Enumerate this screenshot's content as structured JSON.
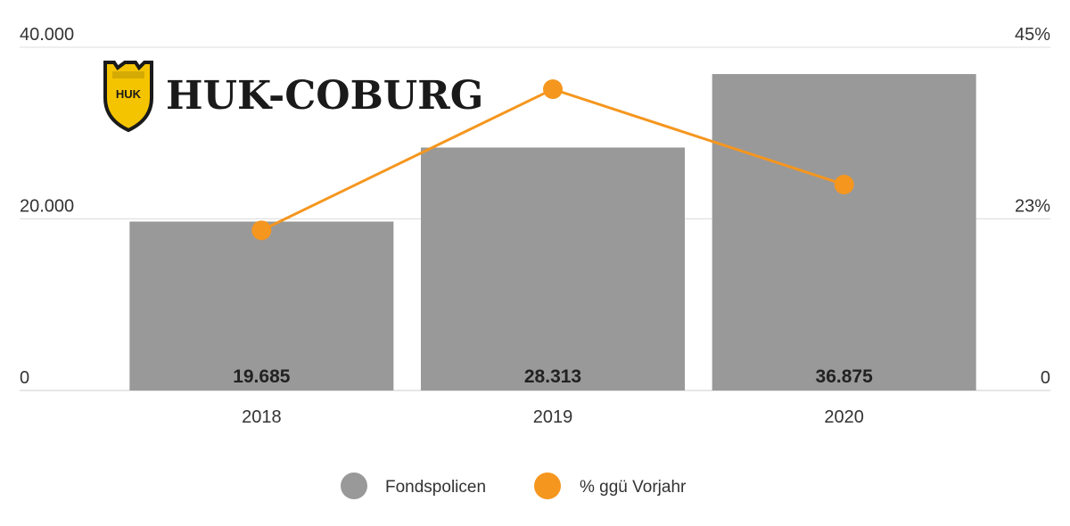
{
  "brand": {
    "name": "HUK-COBURG",
    "shield_text": "HUK"
  },
  "chart_data": {
    "type": "bar",
    "categories": [
      "2018",
      "2019",
      "2020"
    ],
    "series": [
      {
        "name": "Fondspolicen",
        "type": "bar",
        "axis": "left",
        "color": "#999999",
        "values": [
          19685,
          28313,
          36875
        ],
        "labels": [
          "19.685",
          "28.313",
          "36.875"
        ]
      },
      {
        "name": "% ggü Vorjahr",
        "type": "line",
        "axis": "right",
        "color": "#f5961e",
        "values": [
          21,
          39.5,
          27
        ]
      }
    ],
    "left_axis": {
      "ylim": [
        0,
        40000
      ],
      "ticks": [
        0,
        20000,
        40000
      ],
      "tick_labels": [
        "0",
        "20.000",
        "40.000"
      ]
    },
    "right_axis": {
      "ylim": [
        0,
        45
      ],
      "ticks": [
        0,
        22.5,
        45
      ],
      "tick_labels": [
        "0",
        "23%",
        "45%"
      ]
    },
    "grid": true,
    "legend": {
      "position": "bottom-center",
      "items": [
        "Fondspolicen",
        "% ggü Vorjahr"
      ]
    },
    "title": "",
    "xlabel": "",
    "ylabel": ""
  }
}
